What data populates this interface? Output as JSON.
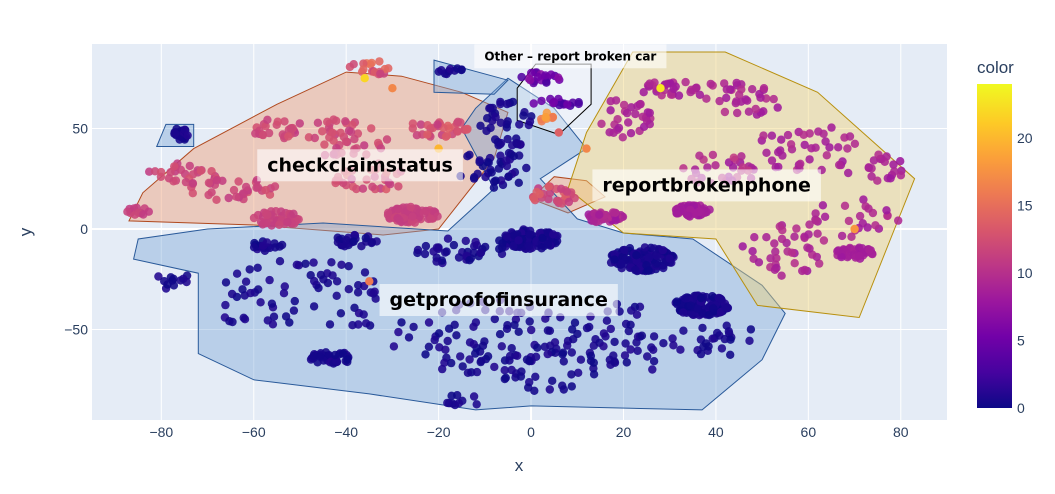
{
  "chart_data": {
    "type": "scatter",
    "xlabel": "x",
    "ylabel": "y",
    "xlim": [
      -95,
      90
    ],
    "ylim": [
      -95,
      92
    ],
    "x_ticks": [
      -80,
      -60,
      -40,
      -20,
      0,
      20,
      40,
      60,
      80
    ],
    "y_ticks": [
      50,
      0,
      -50
    ],
    "x_tick_labels": [
      "−80",
      "−60",
      "−40",
      "−20",
      "0",
      "20",
      "40",
      "60",
      "80"
    ],
    "y_tick_labels": [
      "50",
      "0",
      "−50"
    ],
    "grid": true,
    "colorbar": {
      "title": "color",
      "range": [
        0,
        24
      ],
      "ticks": [
        0,
        5,
        10,
        15,
        20
      ],
      "tick_labels": [
        "0",
        "5",
        "10",
        "15",
        "20"
      ],
      "colorscale": [
        "#0d0887",
        "#46039f",
        "#7201a8",
        "#9c179e",
        "#bd3786",
        "#d8576b",
        "#ed7953",
        "#fb9f3a",
        "#fdca26",
        "#f0f921"
      ]
    },
    "regions": [
      {
        "label": "checkclaimstatus",
        "label_at": [
          -37,
          32
        ],
        "fill": "rgba(239,160,120,0.45)",
        "stroke": "#b04a20",
        "polygon": [
          [
            -87,
            4
          ],
          [
            -84,
            18
          ],
          [
            -73,
            40
          ],
          [
            -55,
            62
          ],
          [
            -40,
            78
          ],
          [
            -28,
            76
          ],
          [
            -15,
            68
          ],
          [
            -5,
            58
          ],
          [
            -8,
            35
          ],
          [
            -20,
            0
          ],
          [
            -32,
            -3
          ],
          [
            -60,
            2
          ]
        ]
      },
      {
        "label": "",
        "fill": "rgba(239,160,120,0.45)",
        "stroke": "#b04a20",
        "polygon": [
          [
            0,
            15
          ],
          [
            5,
            26
          ],
          [
            12,
            24
          ],
          [
            16,
            16
          ],
          [
            8,
            8
          ]
        ]
      },
      {
        "label": "getproofofinsurance",
        "label_at": [
          -7,
          -35
        ],
        "fill": "rgba(120,165,215,0.4)",
        "stroke": "#2a5a9a",
        "polygon": [
          [
            -86,
            -15
          ],
          [
            -85,
            -5
          ],
          [
            -70,
            0
          ],
          [
            -45,
            3
          ],
          [
            -18,
            -1
          ],
          [
            -8,
            20
          ],
          [
            -15,
            50
          ],
          [
            -12,
            60
          ],
          [
            -5,
            75
          ],
          [
            5,
            60
          ],
          [
            12,
            40
          ],
          [
            2,
            25
          ],
          [
            10,
            5
          ],
          [
            20,
            -2
          ],
          [
            35,
            -5
          ],
          [
            50,
            -28
          ],
          [
            55,
            -42
          ],
          [
            50,
            -65
          ],
          [
            37,
            -90
          ],
          [
            0,
            -88
          ],
          [
            -12,
            -90
          ],
          [
            -35,
            -82
          ],
          [
            -60,
            -75
          ],
          [
            -72,
            -62
          ],
          [
            -72,
            -22
          ]
        ]
      },
      {
        "label": "",
        "fill": "rgba(120,165,215,0.4)",
        "stroke": "#2a5a9a",
        "polygon": [
          [
            -79,
            52
          ],
          [
            -73,
            52
          ],
          [
            -73,
            41
          ],
          [
            -81,
            41
          ]
        ]
      },
      {
        "label": "",
        "fill": "rgba(120,165,215,0.4)",
        "stroke": "#2a5a9a",
        "polygon": [
          [
            -21,
            84
          ],
          [
            -5,
            74
          ],
          [
            -8,
            67
          ],
          [
            -21,
            68
          ]
        ]
      },
      {
        "label": "reportbrokenphone",
        "label_at": [
          38,
          22
        ],
        "fill": "rgba(240,210,120,0.45)",
        "stroke": "#b8900f",
        "polygon": [
          [
            22,
            88
          ],
          [
            42,
            88
          ],
          [
            62,
            68
          ],
          [
            83,
            25
          ],
          [
            71,
            -44
          ],
          [
            49,
            -38
          ],
          [
            40,
            -5
          ],
          [
            20,
            -2
          ],
          [
            8,
            20
          ],
          [
            12,
            48
          ]
        ]
      },
      {
        "label": "Other – report broken car",
        "label_at": [
          8.5,
          86
        ],
        "fill": "rgba(255,255,255,0.35)",
        "stroke": "#000000",
        "polygon": [
          [
            1,
            82
          ],
          [
            13,
            82
          ],
          [
            13,
            62
          ],
          [
            6,
            47
          ],
          [
            -3,
            54
          ],
          [
            -3,
            70
          ]
        ]
      }
    ],
    "clusters": [
      {
        "cx": -35,
        "cy": 80,
        "rx": 5,
        "ry": 4,
        "n": 18,
        "c": [
          11,
          16
        ]
      },
      {
        "cx": -55,
        "cy": 50,
        "rx": 6,
        "ry": 5,
        "n": 25,
        "c": [
          11,
          13
        ]
      },
      {
        "cx": -40,
        "cy": 45,
        "rx": 10,
        "ry": 10,
        "n": 45,
        "c": [
          11,
          13
        ]
      },
      {
        "cx": -20,
        "cy": 50,
        "rx": 7,
        "ry": 5,
        "n": 32,
        "c": [
          11,
          14
        ]
      },
      {
        "cx": -75,
        "cy": 28,
        "rx": 8,
        "ry": 5,
        "n": 24,
        "c": [
          11,
          13
        ]
      },
      {
        "cx": -65,
        "cy": 20,
        "rx": 10,
        "ry": 6,
        "n": 34,
        "c": [
          11,
          13
        ]
      },
      {
        "cx": -55,
        "cy": 5,
        "rx": 5,
        "ry": 4,
        "n": 45,
        "c": [
          11,
          12
        ]
      },
      {
        "cx": -26,
        "cy": 7,
        "rx": 6,
        "ry": 4,
        "n": 80,
        "c": [
          11,
          12
        ]
      },
      {
        "cx": -85,
        "cy": 9,
        "rx": 3,
        "ry": 2,
        "n": 12,
        "c": [
          11,
          12
        ]
      },
      {
        "cx": -35,
        "cy": 25,
        "rx": 8,
        "ry": 8,
        "n": 30,
        "c": [
          11,
          14
        ]
      },
      {
        "cx": 5,
        "cy": 17,
        "rx": 5,
        "ry": 5,
        "n": 30,
        "c": [
          11,
          14
        ]
      },
      {
        "cx": 2,
        "cy": 75,
        "rx": 5,
        "ry": 3,
        "n": 20,
        "c": [
          3,
          7
        ]
      },
      {
        "cx": 6,
        "cy": 63,
        "rx": 6,
        "ry": 2,
        "n": 16,
        "c": [
          2,
          6
        ]
      },
      {
        "cx": 3,
        "cy": 55,
        "rx": 2,
        "ry": 3,
        "n": 10,
        "c": [
          16,
          19
        ]
      },
      {
        "cx": -76,
        "cy": 47,
        "rx": 2,
        "ry": 3,
        "n": 20,
        "c": [
          0,
          1
        ]
      },
      {
        "cx": -17,
        "cy": 78,
        "rx": 3,
        "ry": 2,
        "n": 10,
        "c": [
          0,
          1
        ]
      },
      {
        "cx": -5,
        "cy": 52,
        "rx": 6,
        "ry": 12,
        "n": 38,
        "c": [
          0,
          1
        ]
      },
      {
        "cx": -8,
        "cy": 30,
        "rx": 8,
        "ry": 10,
        "n": 38,
        "c": [
          0,
          1
        ]
      },
      {
        "cx": 0,
        "cy": -5,
        "rx": 6,
        "ry": 5,
        "n": 120,
        "c": [
          0,
          1
        ]
      },
      {
        "cx": 24,
        "cy": -15,
        "rx": 7,
        "ry": 6,
        "n": 140,
        "c": [
          0,
          1
        ]
      },
      {
        "cx": 37,
        "cy": -38,
        "rx": 6,
        "ry": 5,
        "n": 130,
        "c": [
          0,
          1
        ]
      },
      {
        "cx": -38,
        "cy": -6,
        "rx": 5,
        "ry": 3,
        "n": 25,
        "c": [
          0,
          1
        ]
      },
      {
        "cx": -57,
        "cy": -9,
        "rx": 4,
        "ry": 3,
        "n": 18,
        "c": [
          0,
          1
        ]
      },
      {
        "cx": -43,
        "cy": -64,
        "rx": 5,
        "ry": 3,
        "n": 40,
        "c": [
          0,
          1
        ]
      },
      {
        "cx": -15,
        "cy": -10,
        "rx": 10,
        "ry": 8,
        "n": 40,
        "c": [
          0,
          1
        ]
      },
      {
        "cx": -50,
        "cy": -35,
        "rx": 20,
        "ry": 20,
        "n": 70,
        "c": [
          0,
          1
        ]
      },
      {
        "cx": -10,
        "cy": -55,
        "rx": 20,
        "ry": 20,
        "n": 90,
        "c": [
          0,
          1
        ]
      },
      {
        "cx": 20,
        "cy": -55,
        "rx": 12,
        "ry": 18,
        "n": 50,
        "c": [
          0,
          1
        ]
      },
      {
        "cx": 5,
        "cy": -70,
        "rx": 15,
        "ry": 12,
        "n": 30,
        "c": [
          0,
          1
        ]
      },
      {
        "cx": 40,
        "cy": -55,
        "rx": 10,
        "ry": 8,
        "n": 25,
        "c": [
          0,
          1
        ]
      },
      {
        "cx": -78,
        "cy": -25,
        "rx": 4,
        "ry": 5,
        "n": 12,
        "c": [
          0,
          1
        ]
      },
      {
        "cx": -15,
        "cy": -85,
        "rx": 5,
        "ry": 3,
        "n": 10,
        "c": [
          0,
          1
        ]
      },
      {
        "cx": 30,
        "cy": 70,
        "rx": 7,
        "ry": 4,
        "n": 28,
        "c": [
          8,
          10
        ]
      },
      {
        "cx": 45,
        "cy": 65,
        "rx": 10,
        "ry": 10,
        "n": 35,
        "c": [
          8,
          10
        ]
      },
      {
        "cx": 20,
        "cy": 55,
        "rx": 6,
        "ry": 10,
        "n": 30,
        "c": [
          8,
          10
        ]
      },
      {
        "cx": 60,
        "cy": 40,
        "rx": 12,
        "ry": 12,
        "n": 40,
        "c": [
          8,
          10
        ]
      },
      {
        "cx": 75,
        "cy": 30,
        "rx": 7,
        "ry": 7,
        "n": 20,
        "c": [
          8,
          10
        ]
      },
      {
        "cx": 35,
        "cy": 9,
        "rx": 4,
        "ry": 3,
        "n": 60,
        "c": [
          8,
          9
        ]
      },
      {
        "cx": 16,
        "cy": 6,
        "rx": 4,
        "ry": 3,
        "n": 45,
        "c": [
          8,
          10
        ]
      },
      {
        "cx": 70,
        "cy": -12,
        "rx": 4,
        "ry": 3,
        "n": 40,
        "c": [
          8,
          9
        ]
      },
      {
        "cx": 55,
        "cy": -10,
        "rx": 10,
        "ry": 15,
        "n": 40,
        "c": [
          8,
          10
        ]
      },
      {
        "cx": 70,
        "cy": 5,
        "rx": 10,
        "ry": 10,
        "n": 25,
        "c": [
          8,
          10
        ]
      },
      {
        "cx": 40,
        "cy": 30,
        "rx": 10,
        "ry": 8,
        "n": 30,
        "c": [
          8,
          11
        ]
      }
    ],
    "outliers": [
      {
        "x": -36,
        "y": 75,
        "c": 22
      },
      {
        "x": -30,
        "y": 70,
        "c": 17
      },
      {
        "x": -20,
        "y": 40,
        "c": 20
      },
      {
        "x": 28,
        "y": 70,
        "c": 23
      },
      {
        "x": -35,
        "y": -26,
        "c": 16
      },
      {
        "x": 12,
        "y": 40,
        "c": 17
      },
      {
        "x": 70,
        "y": 0,
        "c": 18
      },
      {
        "x": 6,
        "y": 48,
        "c": 14
      }
    ]
  }
}
